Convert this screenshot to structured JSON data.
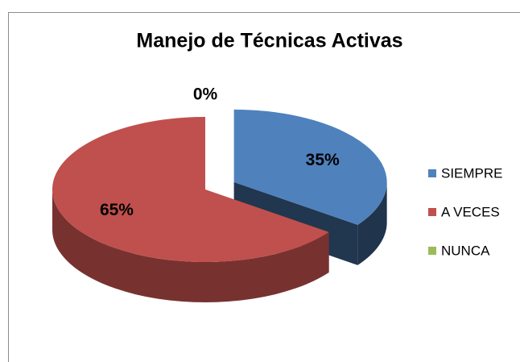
{
  "chart_data": {
    "type": "pie",
    "title": "Manejo de Técnicas Activas",
    "categories": [
      "SIEMPRE",
      "A VECES",
      "NUNCA"
    ],
    "values": [
      35,
      65,
      0
    ],
    "value_labels": [
      "35%",
      "65%",
      "0%"
    ],
    "colors": [
      "#4f81bd",
      "#c0504d",
      "#9bbb59"
    ],
    "legend": "right"
  }
}
